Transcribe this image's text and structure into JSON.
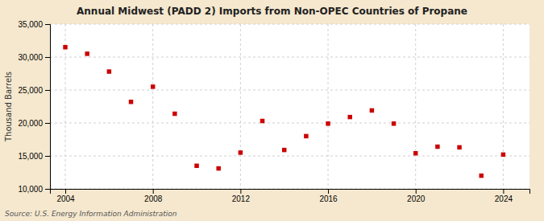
{
  "chart_data": {
    "type": "scatter",
    "title": "Annual Midwest (PADD 2) Imports from Non-OPEC Countries of Propane",
    "ylabel": "Thousand Barrels",
    "annotations": [
      "Source: U.S. Energy Information Administration"
    ],
    "x": [
      2004,
      2005,
      2006,
      2007,
      2008,
      2009,
      2010,
      2011,
      2012,
      2013,
      2014,
      2015,
      2016,
      2017,
      2018,
      2019,
      2020,
      2021,
      2022,
      2023,
      2024
    ],
    "values": [
      31500,
      30500,
      27800,
      23200,
      25500,
      21400,
      13500,
      13100,
      15500,
      20300,
      15900,
      18000,
      19900,
      20900,
      21900,
      19900,
      15400,
      16400,
      16300,
      12000,
      15200
    ],
    "color": "#cc0000",
    "marker": "square",
    "xlim": [
      2003.3,
      2025.2
    ],
    "xticks": [
      2004,
      2008,
      2012,
      2016,
      2020,
      2024
    ],
    "ylim": [
      10000,
      35000
    ],
    "yticks": [
      {
        "value": 10000,
        "label": "10,000"
      },
      {
        "value": 15000,
        "label": "15,000"
      },
      {
        "value": 20000,
        "label": "20,000"
      },
      {
        "value": 25000,
        "label": "25,000"
      },
      {
        "value": 30000,
        "label": "30,000"
      },
      {
        "value": 35000,
        "label": "35,000"
      }
    ],
    "grid": true
  }
}
